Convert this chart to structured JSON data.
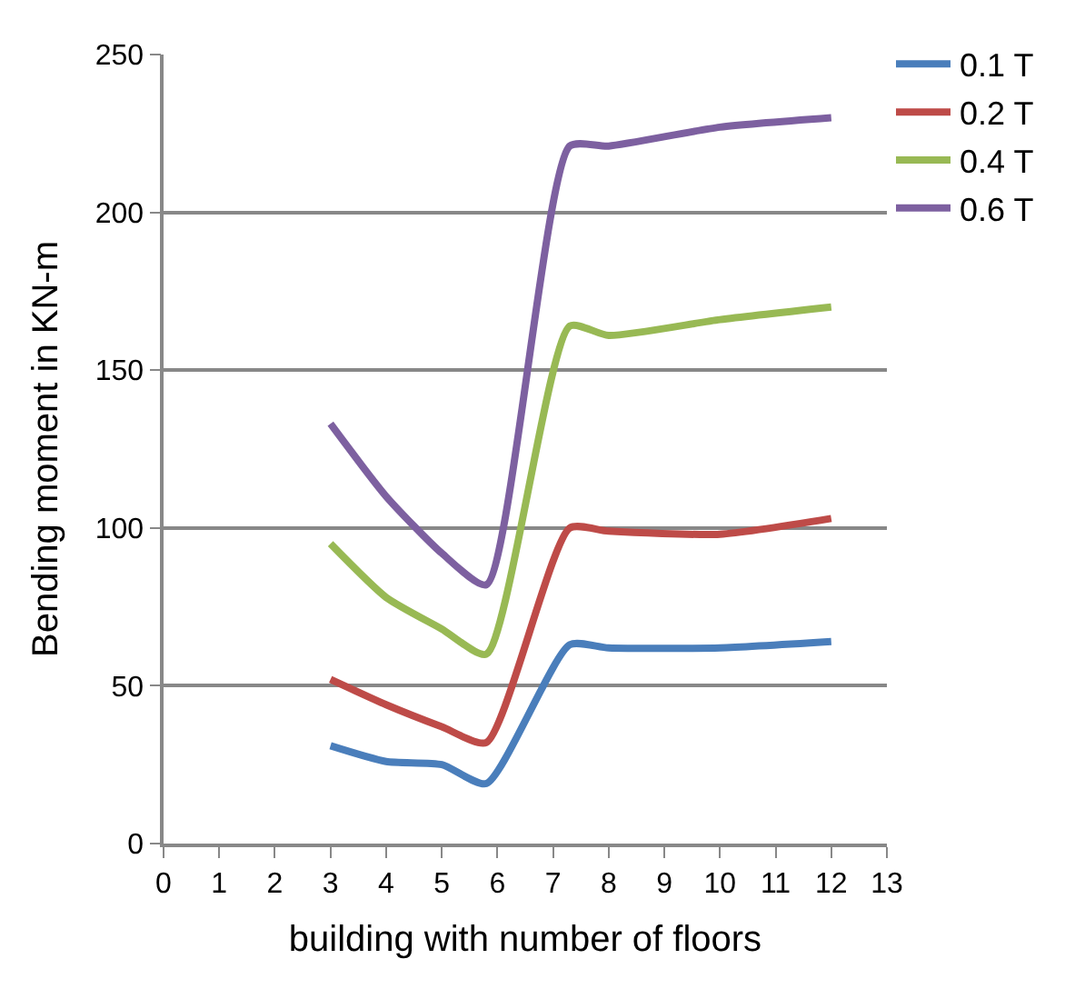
{
  "chart_data": {
    "type": "line",
    "xlabel": "building with number of floors",
    "ylabel": "Bending moment in KN-m",
    "xlim": [
      0,
      13
    ],
    "xticks": [
      0,
      1,
      2,
      3,
      4,
      5,
      6,
      7,
      8,
      9,
      10,
      11,
      12,
      13
    ],
    "ylim": [
      0,
      250
    ],
    "yticks": [
      0,
      50,
      100,
      150,
      200,
      250
    ],
    "x": [
      3,
      4,
      5,
      5.8,
      7.3,
      8,
      10,
      12
    ],
    "series": [
      {
        "name": "0.1 T",
        "color": "#4a7ebb",
        "values": [
          31,
          26,
          25,
          19,
          63,
          62,
          62,
          64
        ]
      },
      {
        "name": "0.2 T",
        "color": "#be4b48",
        "values": [
          52,
          44,
          37,
          32,
          100,
          99,
          98,
          103
        ]
      },
      {
        "name": "0.4 T",
        "color": "#98b954",
        "values": [
          95,
          78,
          68,
          60,
          164,
          161,
          166,
          170
        ]
      },
      {
        "name": "0.6 T",
        "color": "#7d60a0",
        "values": [
          133,
          110,
          92,
          82,
          221,
          221,
          227,
          230
        ]
      }
    ],
    "grid": "y",
    "legend": "top right",
    "marker": "none",
    "line_style": "solid"
  }
}
